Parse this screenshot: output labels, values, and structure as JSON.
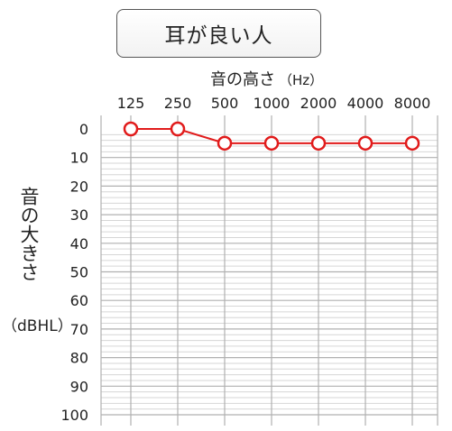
{
  "title": "耳が良い人",
  "x_axis": {
    "label": "音の高さ",
    "unit": "（Hz）"
  },
  "y_axis": {
    "label": "音の大きさ",
    "unit": "（dBHL）"
  },
  "colors": {
    "series": "#e11b1b",
    "grid_major": "#b0b0b0",
    "grid_minor": "#d6d6d6",
    "plot_bg": "#ffffff"
  },
  "chart_data": {
    "type": "line",
    "title": "耳が良い人",
    "xlabel": "音の高さ（Hz）",
    "ylabel": "音の大きさ（dBHL）",
    "categories": [
      "125",
      "250",
      "500",
      "1000",
      "2000",
      "4000",
      "8000"
    ],
    "y_ticks": [
      0,
      10,
      20,
      30,
      40,
      50,
      60,
      70,
      80,
      90,
      100
    ],
    "ylim": [
      0,
      100
    ],
    "y_inverted": true,
    "grid": true,
    "marker": "open-circle",
    "series": [
      {
        "values": [
          0,
          0,
          5,
          5,
          5,
          5,
          5
        ]
      }
    ]
  }
}
